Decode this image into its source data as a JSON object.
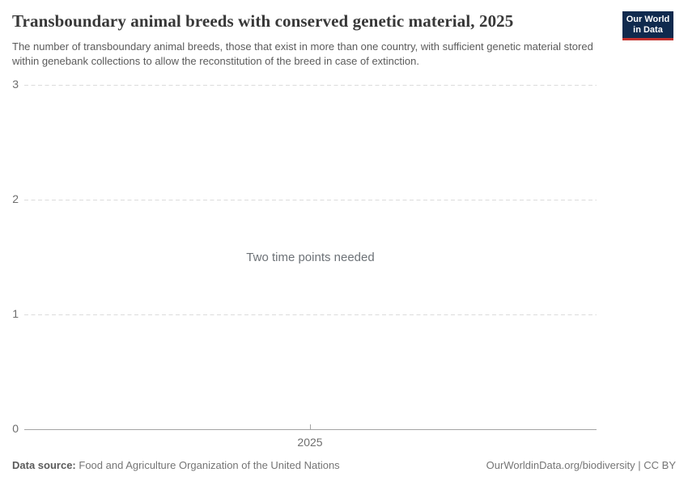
{
  "header": {
    "title": "Transboundary animal breeds with conserved genetic material, 2025",
    "subtitle": "The number of transboundary animal breeds, those that exist in more than one country, with sufficient genetic material stored within genebank collections to allow the reconstitution of the breed in case of extinction.",
    "logo": {
      "line1": "Our World",
      "line2": "in Data"
    }
  },
  "chart_data": {
    "type": "line",
    "title": "Transboundary animal breeds with conserved genetic material, 2025",
    "message": "Two time points needed",
    "series": [],
    "x_ticks": [
      "2025"
    ],
    "y_ticks": [
      0,
      1,
      2,
      3
    ],
    "ylim": [
      0,
      3
    ],
    "grid": "horizontal-dashed",
    "legend": "none"
  },
  "footer": {
    "source_label": "Data source:",
    "source_value": "Food and Agriculture Organization of the United Nations",
    "attribution": "OurWorldinData.org/biodiversity | CC BY"
  },
  "colors": {
    "title": "#383838",
    "subtitle": "#5b5b5b",
    "axis_label": "#6e6e6e",
    "gridline": "#dcdcdc",
    "axis_line": "#a3a3a3",
    "message": "#6d7277",
    "footer_text": "#757575",
    "logo_background": "#102a4e",
    "logo_stripe": "#c2302d"
  }
}
